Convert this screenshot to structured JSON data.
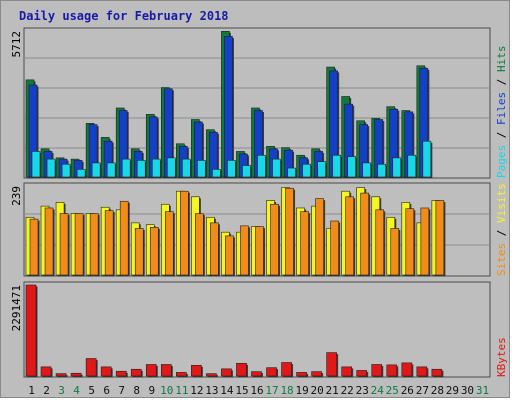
{
  "title": "Daily usage for February 2018",
  "colors": {
    "pages": "#18d8e8",
    "files": "#1440c8",
    "hits": "#0f7a3a",
    "visits": "#f5f520",
    "sites": "#f08c1a",
    "kbytes": "#e01818",
    "weekend_day": "#0d7a48",
    "weekday": "#101010",
    "title": "#1a1aa8"
  },
  "chart_data": [
    {
      "type": "bar",
      "panel": "top",
      "max_label": "5712",
      "ymax": 5712,
      "categories": [
        "1",
        "2",
        "3",
        "4",
        "5",
        "6",
        "7",
        "8",
        "9",
        "10",
        "11",
        "12",
        "13",
        "14",
        "15",
        "16",
        "17",
        "18",
        "19",
        "20",
        "21",
        "22",
        "23",
        "24",
        "25",
        "26",
        "27",
        "28",
        "29",
        "30",
        "31"
      ],
      "side_labels": [
        "Pages",
        "Files",
        "Hits"
      ],
      "series": [
        {
          "name": "Hits",
          "values": [
            3800,
            1100,
            750,
            700,
            2100,
            1550,
            2700,
            1100,
            2450,
            3500,
            1300,
            2250,
            1850,
            5700,
            1000,
            2700,
            1200,
            1150,
            850,
            1100,
            4300,
            3150,
            2200,
            2300,
            2750,
            2600,
            4350,
            0,
            0,
            0,
            0
          ]
        },
        {
          "name": "Files",
          "values": [
            3600,
            1000,
            700,
            650,
            2050,
            1400,
            2600,
            1000,
            2350,
            3450,
            1200,
            2150,
            1750,
            5500,
            900,
            2600,
            1100,
            1050,
            750,
            1000,
            4150,
            2850,
            2050,
            2250,
            2650,
            2550,
            4250,
            0,
            0,
            0,
            0
          ]
        },
        {
          "name": "Pages",
          "values": [
            1000,
            700,
            500,
            300,
            550,
            550,
            700,
            650,
            700,
            750,
            700,
            650,
            300,
            650,
            450,
            850,
            700,
            350,
            500,
            600,
            850,
            800,
            550,
            500,
            750,
            850,
            1400,
            0,
            0,
            0,
            0
          ]
        }
      ]
    },
    {
      "type": "bar",
      "panel": "middle",
      "max_label": "239",
      "ymax": 239,
      "side_labels": [
        "Sites",
        "Visits"
      ],
      "series": [
        {
          "name": "Visits",
          "values": [
            155,
            185,
            195,
            165,
            165,
            182,
            175,
            140,
            135,
            190,
            225,
            210,
            155,
            115,
            115,
            130,
            200,
            235,
            180,
            185,
            125,
            225,
            235,
            210,
            155,
            195,
            140,
            200,
            0,
            0,
            0
          ]
        },
        {
          "name": "Sites",
          "values": [
            150,
            180,
            165,
            165,
            165,
            173,
            198,
            125,
            128,
            170,
            225,
            165,
            140,
            105,
            132,
            130,
            190,
            233,
            170,
            205,
            145,
            210,
            220,
            175,
            125,
            178,
            180,
            200,
            0,
            0,
            0
          ]
        }
      ]
    },
    {
      "type": "bar",
      "panel": "bottom",
      "max_label": "2291471",
      "ymax": 2291471,
      "side_labels": [
        "KBytes"
      ],
      "series": [
        {
          "name": "KBytes",
          "values": [
            2291471,
            230000,
            60000,
            70000,
            440000,
            230000,
            120000,
            170000,
            290000,
            290000,
            90000,
            270000,
            60000,
            180000,
            320000,
            110000,
            210000,
            340000,
            90000,
            110000,
            590000,
            230000,
            140000,
            290000,
            280000,
            330000,
            230000,
            170000,
            0,
            0,
            0
          ]
        }
      ]
    }
  ]
}
